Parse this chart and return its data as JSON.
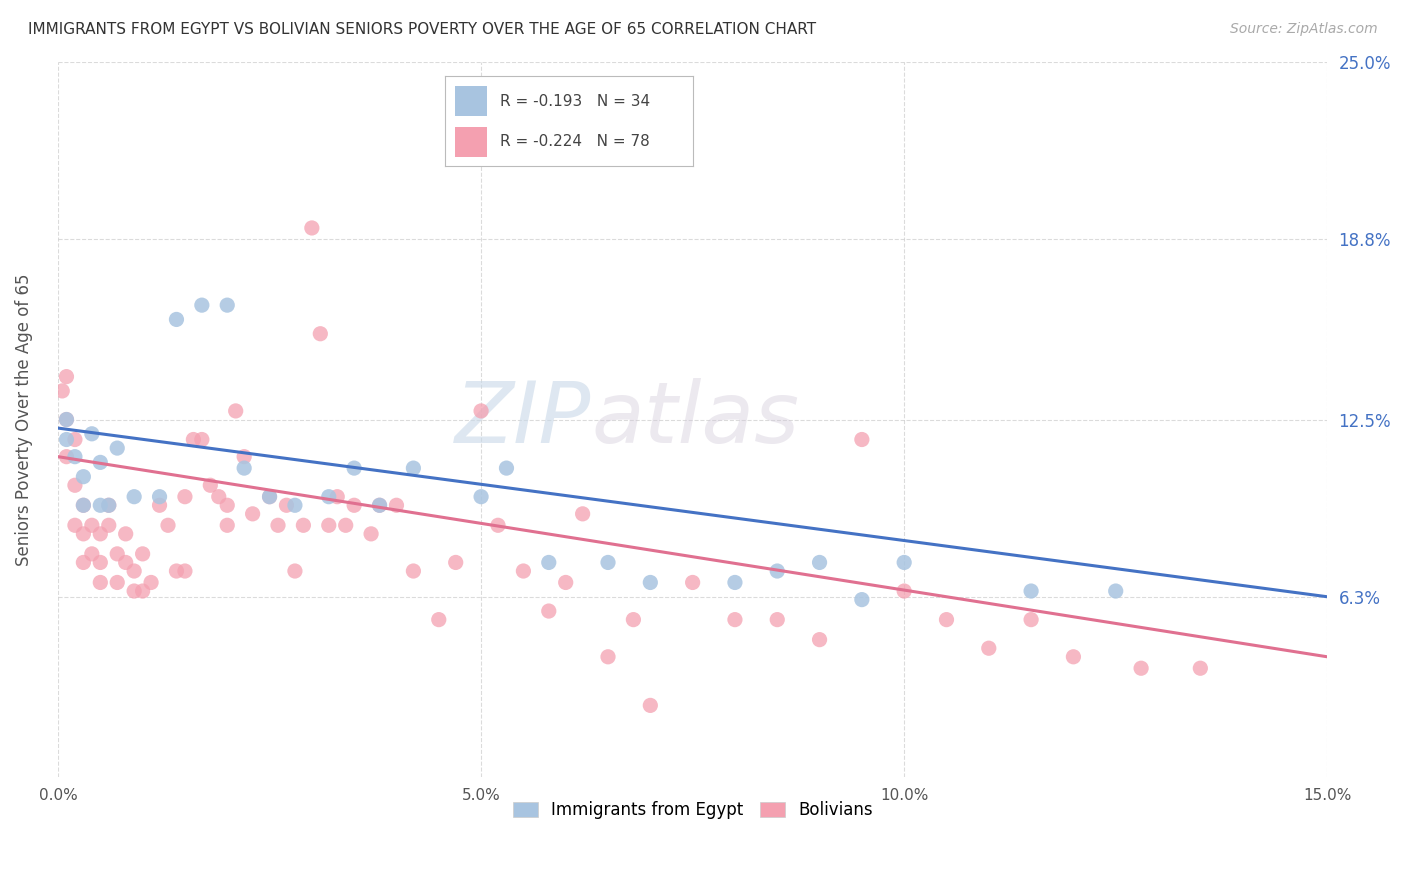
{
  "title": "IMMIGRANTS FROM EGYPT VS BOLIVIAN SENIORS POVERTY OVER THE AGE OF 65 CORRELATION CHART",
  "source": "Source: ZipAtlas.com",
  "ylabel": "Seniors Poverty Over the Age of 65",
  "xlim": [
    0.0,
    0.15
  ],
  "ylim": [
    0.0,
    0.25
  ],
  "yticks": [
    0.063,
    0.125,
    0.188,
    0.25
  ],
  "ytick_labels": [
    "6.3%",
    "12.5%",
    "18.8%",
    "25.0%"
  ],
  "xticks": [
    0.0,
    0.05,
    0.1,
    0.15
  ],
  "xtick_labels": [
    "0.0%",
    "5.0%",
    "10.0%",
    "15.0%"
  ],
  "background_color": "#ffffff",
  "grid_color": "#cccccc",
  "watermark_zip": "ZIP",
  "watermark_atlas": "atlas",
  "egypt_color": "#a8c4e0",
  "bolivia_color": "#f4a0b0",
  "egypt_line_color": "#4472c4",
  "bolivia_line_color": "#e07090",
  "right_tick_color": "#4472c4",
  "egypt_r": -0.193,
  "egypt_n": 34,
  "bolivia_r": -0.224,
  "bolivia_n": 78,
  "egypt_scatter_x": [
    0.017,
    0.02,
    0.001,
    0.001,
    0.002,
    0.003,
    0.003,
    0.004,
    0.005,
    0.005,
    0.006,
    0.007,
    0.009,
    0.012,
    0.014,
    0.022,
    0.025,
    0.028,
    0.032,
    0.035,
    0.038,
    0.042,
    0.05,
    0.053,
    0.058,
    0.065,
    0.07,
    0.08,
    0.085,
    0.09,
    0.095,
    0.1,
    0.115,
    0.125
  ],
  "egypt_scatter_y": [
    0.165,
    0.165,
    0.125,
    0.118,
    0.112,
    0.105,
    0.095,
    0.12,
    0.11,
    0.095,
    0.095,
    0.115,
    0.098,
    0.098,
    0.16,
    0.108,
    0.098,
    0.095,
    0.098,
    0.108,
    0.095,
    0.108,
    0.098,
    0.108,
    0.075,
    0.075,
    0.068,
    0.068,
    0.072,
    0.075,
    0.062,
    0.075,
    0.065,
    0.065
  ],
  "bolivia_scatter_x": [
    0.0005,
    0.001,
    0.001,
    0.001,
    0.002,
    0.002,
    0.002,
    0.003,
    0.003,
    0.003,
    0.004,
    0.004,
    0.005,
    0.005,
    0.005,
    0.006,
    0.006,
    0.007,
    0.007,
    0.008,
    0.008,
    0.009,
    0.009,
    0.01,
    0.01,
    0.011,
    0.012,
    0.013,
    0.014,
    0.015,
    0.015,
    0.016,
    0.017,
    0.018,
    0.019,
    0.02,
    0.02,
    0.021,
    0.022,
    0.023,
    0.025,
    0.026,
    0.027,
    0.028,
    0.029,
    0.03,
    0.031,
    0.032,
    0.033,
    0.034,
    0.035,
    0.037,
    0.038,
    0.04,
    0.042,
    0.045,
    0.047,
    0.05,
    0.052,
    0.055,
    0.058,
    0.06,
    0.062,
    0.065,
    0.068,
    0.07,
    0.075,
    0.08,
    0.085,
    0.09,
    0.095,
    0.1,
    0.105,
    0.11,
    0.115,
    0.12,
    0.128,
    0.135
  ],
  "bolivia_scatter_y": [
    0.135,
    0.14,
    0.125,
    0.112,
    0.118,
    0.102,
    0.088,
    0.095,
    0.085,
    0.075,
    0.088,
    0.078,
    0.085,
    0.075,
    0.068,
    0.095,
    0.088,
    0.078,
    0.068,
    0.085,
    0.075,
    0.072,
    0.065,
    0.078,
    0.065,
    0.068,
    0.095,
    0.088,
    0.072,
    0.098,
    0.072,
    0.118,
    0.118,
    0.102,
    0.098,
    0.095,
    0.088,
    0.128,
    0.112,
    0.092,
    0.098,
    0.088,
    0.095,
    0.072,
    0.088,
    0.192,
    0.155,
    0.088,
    0.098,
    0.088,
    0.095,
    0.085,
    0.095,
    0.095,
    0.072,
    0.055,
    0.075,
    0.128,
    0.088,
    0.072,
    0.058,
    0.068,
    0.092,
    0.042,
    0.055,
    0.025,
    0.068,
    0.055,
    0.055,
    0.048,
    0.118,
    0.065,
    0.055,
    0.045,
    0.055,
    0.042,
    0.038,
    0.038
  ],
  "egypt_line_x0": 0.0,
  "egypt_line_y0": 0.122,
  "egypt_line_x1": 0.15,
  "egypt_line_y1": 0.063,
  "bolivia_line_x0": 0.0,
  "bolivia_line_y0": 0.112,
  "bolivia_line_x1": 0.15,
  "bolivia_line_y1": 0.042
}
